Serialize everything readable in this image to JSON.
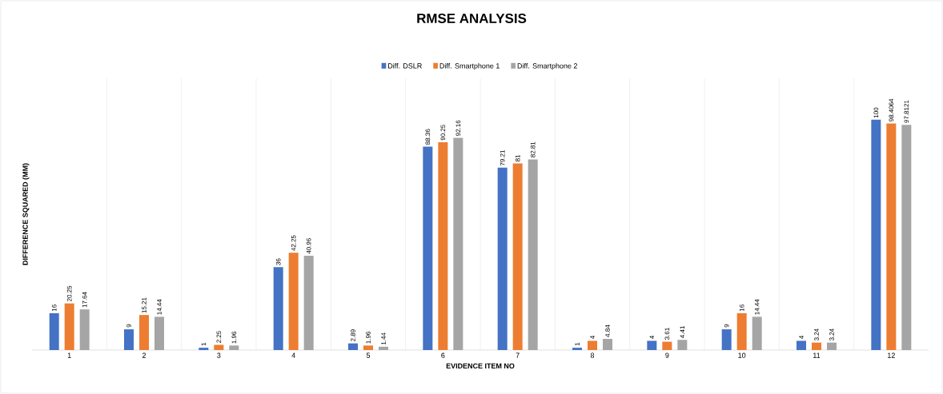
{
  "chart_data": {
    "type": "bar",
    "title": "RMSE ANALYSIS",
    "xlabel": "EVIDENCE ITEM NO",
    "ylabel": "DIFFERENCE SQUARED (MM)",
    "categories": [
      "1",
      "2",
      "3",
      "4",
      "5",
      "6",
      "7",
      "8",
      "9",
      "10",
      "11",
      "12"
    ],
    "series": [
      {
        "name": "Diff. DSLR",
        "color": "#4472c4",
        "values": [
          16,
          9,
          1,
          36,
          2.89,
          88.36,
          79.21,
          1,
          4,
          9,
          4,
          100
        ]
      },
      {
        "name": "Diff. Smartphone 1",
        "color": "#ed7d31",
        "values": [
          20.25,
          15.21,
          2.25,
          42.25,
          1.96,
          90.25,
          81,
          4,
          3.61,
          16,
          3.24,
          98.4064
        ]
      },
      {
        "name": "Diff. Smartphone 2",
        "color": "#a5a5a5",
        "values": [
          17.64,
          14.44,
          1.96,
          40.96,
          1.44,
          92.16,
          82.81,
          4.84,
          4.41,
          14.44,
          3.24,
          97.8121
        ]
      }
    ],
    "data_labels": true,
    "legend": "top",
    "grid": "x"
  }
}
